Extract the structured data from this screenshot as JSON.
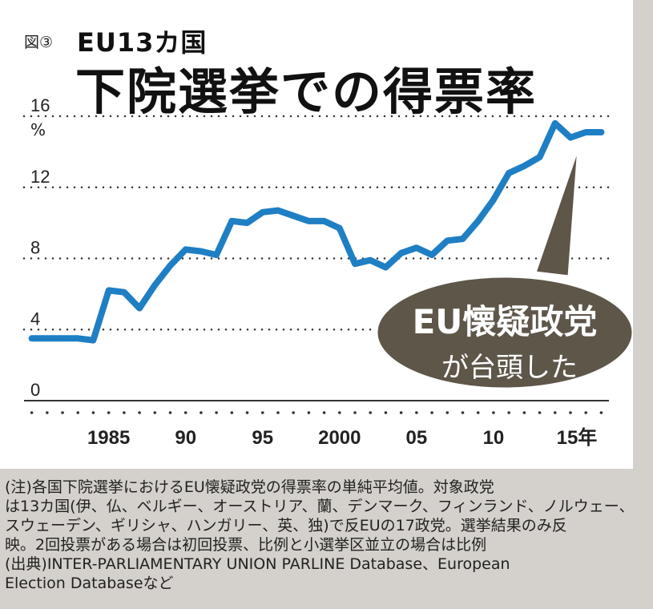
{
  "figure_number": "図③",
  "title_small": "EU13カ国",
  "title_main": "下院選挙での得票率",
  "unit": "%",
  "callout": {
    "line1": "EU懐疑政党",
    "line2": "が台頭した",
    "fill": "#5e5649",
    "text_color": "#ffffff"
  },
  "notes": [
    "(注)各国下院選挙におけるEU懐疑政党の得票率の単純平均値。対象政党",
    "は13カ国(伊、仏、ベルギー、オーストリア、蘭、デンマーク、フィンランド、ノルウェー、",
    "スウェーデン、ギリシャ、ハンガリー、英、独)で反EUの17政党。選挙結果のみ反",
    "映。2回投票がある場合は初回投票、比例と小選挙区並立の場合は比例",
    "(出典)INTER-PARLIAMENTARY UNION PARLINE Database、European",
    "Election Databaseなど"
  ],
  "chart_data": {
    "type": "line",
    "title": "下院選挙での得票率",
    "ylabel": "%",
    "ylim": [
      0,
      16
    ],
    "yticks": [
      0,
      4,
      8,
      12,
      16
    ],
    "xlim": [
      1979.5,
      2017.5
    ],
    "xticks": [
      {
        "value": 1985,
        "label": "1985"
      },
      {
        "value": 1990,
        "label": "90"
      },
      {
        "value": 1995,
        "label": "95"
      },
      {
        "value": 2000,
        "label": "2000"
      },
      {
        "value": 2005,
        "label": "05"
      },
      {
        "value": 2010,
        "label": "10"
      },
      {
        "value": 2015,
        "label": "15年"
      }
    ],
    "grid": true,
    "line_color": "#1f7fc4",
    "series": [
      {
        "x": [
          1980,
          1981,
          1982,
          1983,
          1984,
          1985,
          1986,
          1987,
          1988,
          1989,
          1990,
          1991,
          1992,
          1993,
          1994,
          1995,
          1996,
          1997,
          1998,
          1999,
          2000,
          2001,
          2002,
          2003,
          2004,
          2005,
          2006,
          2007,
          2008,
          2009,
          2010,
          2011,
          2012,
          2013,
          2014,
          2015,
          2016,
          2017
        ],
        "values": [
          3.5,
          3.5,
          3.5,
          3.5,
          3.4,
          6.2,
          6.1,
          5.2,
          6.5,
          7.6,
          8.5,
          8.4,
          8.2,
          10.1,
          10.0,
          10.6,
          10.7,
          10.4,
          10.1,
          10.1,
          9.7,
          7.7,
          7.9,
          7.5,
          8.3,
          8.6,
          8.2,
          9.0,
          9.1,
          10.1,
          11.3,
          12.8,
          13.2,
          13.7,
          15.6,
          14.8,
          15.1,
          15.1
        ]
      }
    ]
  }
}
